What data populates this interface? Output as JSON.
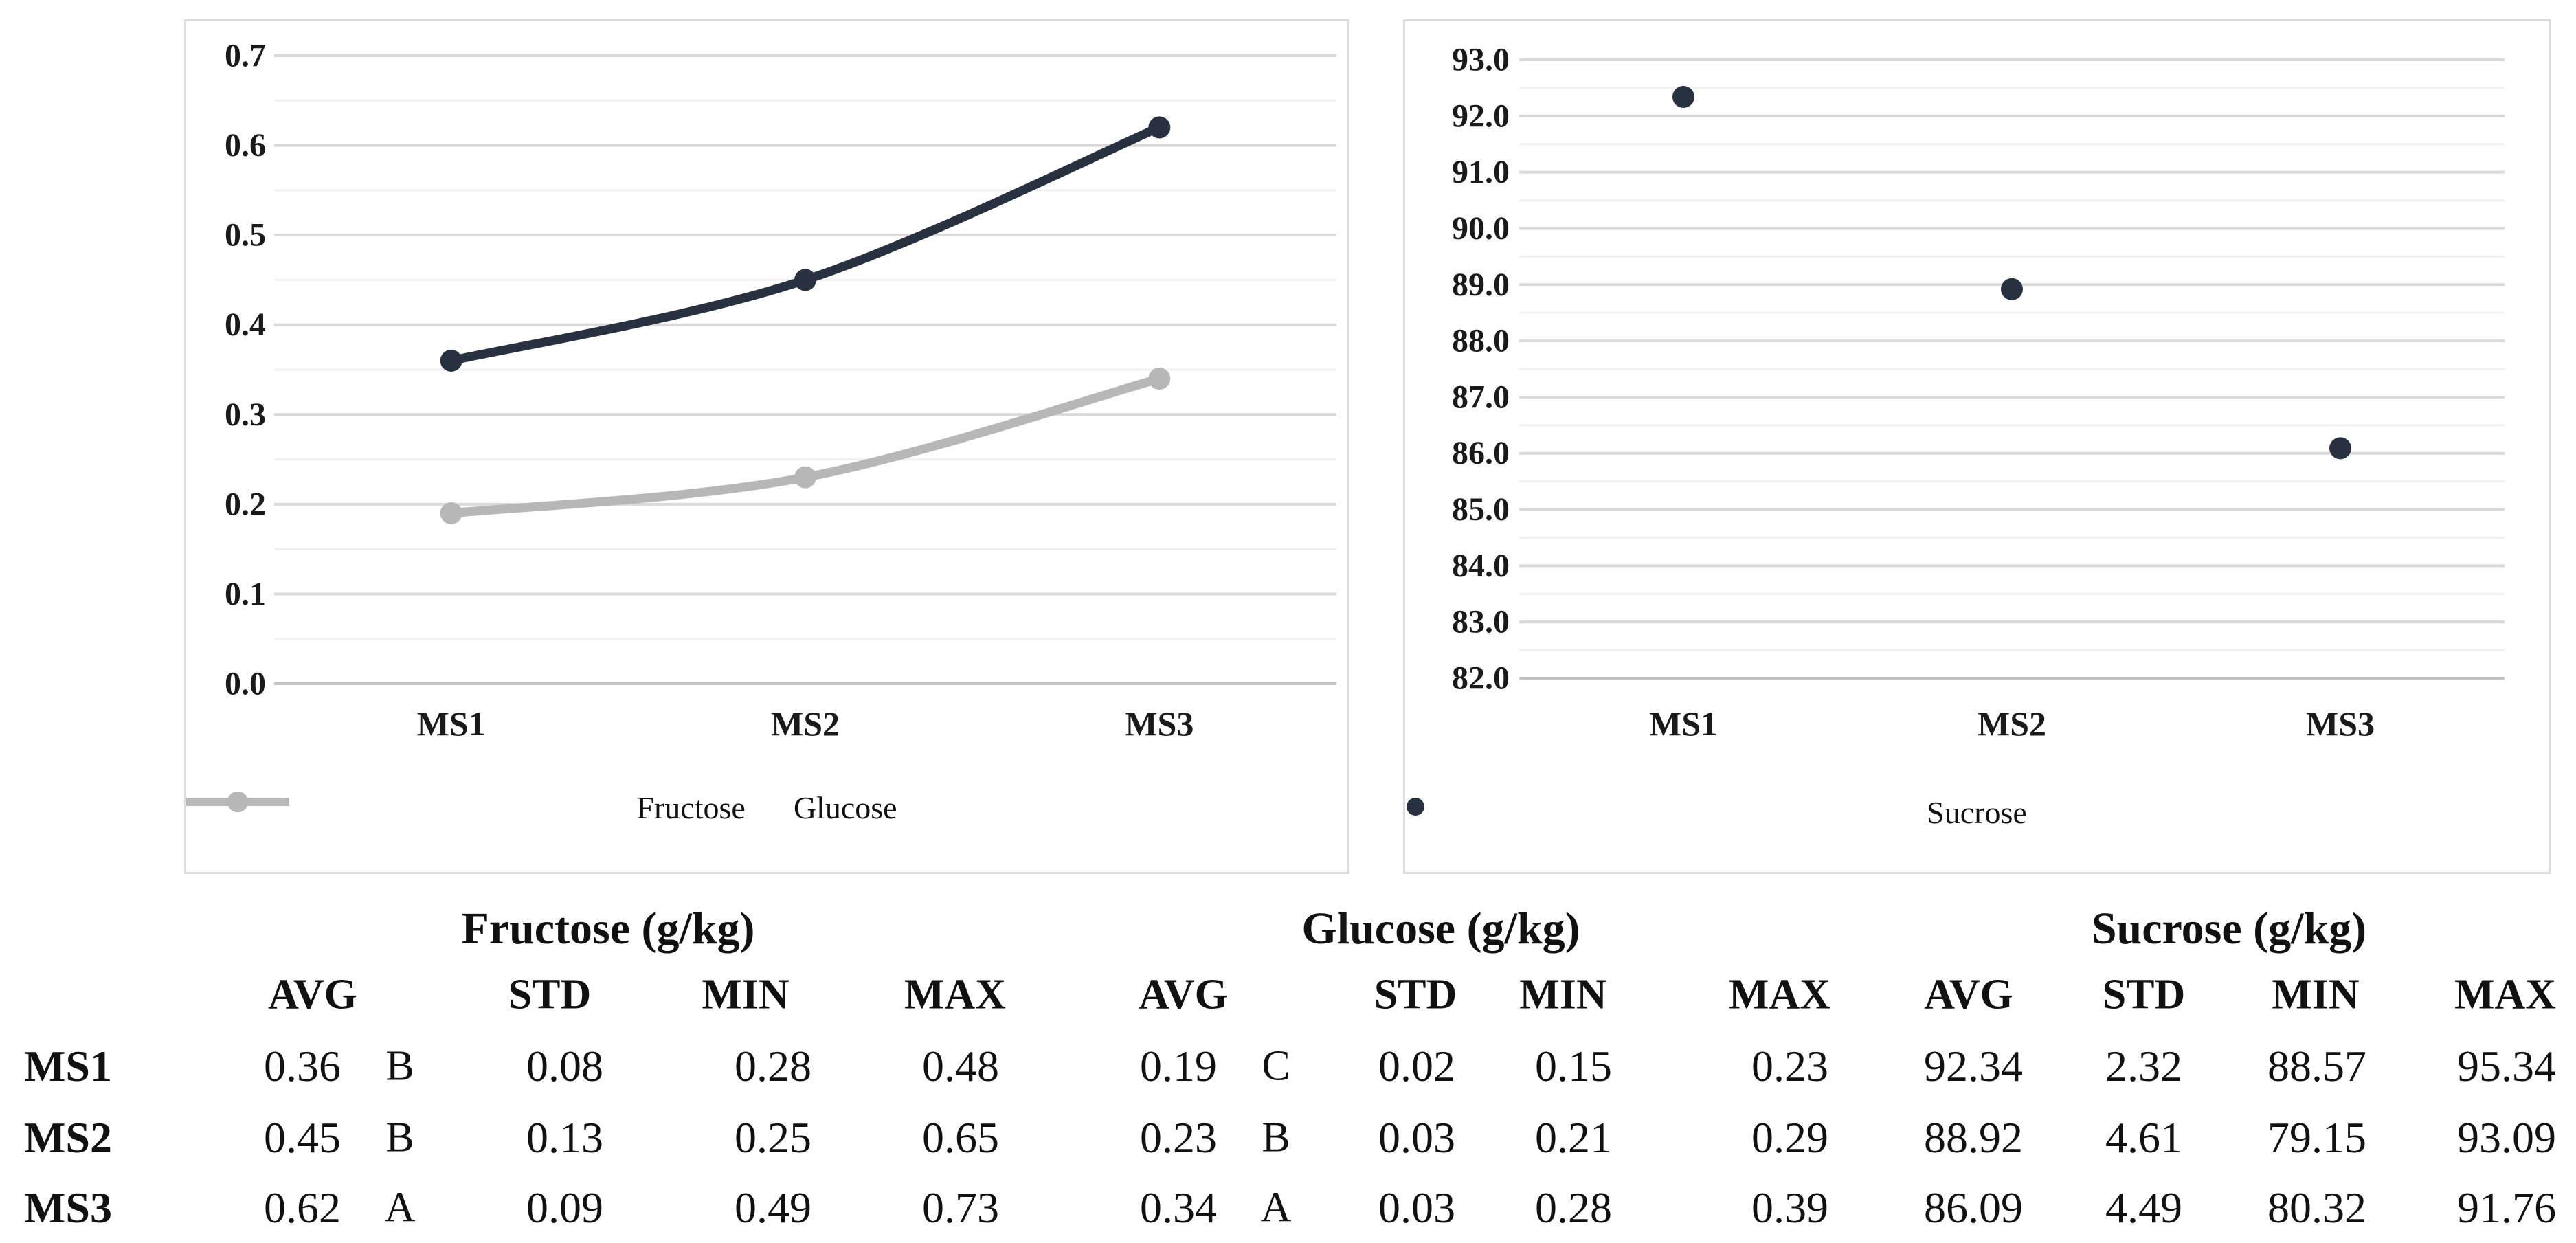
{
  "figure": {
    "background": "#ffffff",
    "panel_border_color": "#dcdcdc"
  },
  "colors": {
    "fructose_line": "#273140",
    "glucose_line": "#b7b7b7",
    "sucrose_point": "#273140",
    "gridline_major": "#d9d9d9",
    "gridline_minor": "#f1f1f1",
    "axis_line": "#c3c3c3",
    "text": "#1a1a1a"
  },
  "chart_data": [
    {
      "type": "line",
      "title": "",
      "categories": [
        "MS1",
        "MS2",
        "MS3"
      ],
      "series": [
        {
          "name": "Fructose",
          "values": [
            0.36,
            0.45,
            0.62
          ],
          "color": "#273140"
        },
        {
          "name": "Glucose",
          "values": [
            0.19,
            0.23,
            0.34
          ],
          "color": "#b7b7b7"
        }
      ],
      "xlabel": "",
      "ylabel": "",
      "ylim": [
        0.0,
        0.7
      ],
      "ytick_step": 0.1,
      "ytick_decimals": 1,
      "grid": "on",
      "legend_position": "bottom"
    },
    {
      "type": "scatter",
      "title": "",
      "categories": [
        "MS1",
        "MS2",
        "MS3"
      ],
      "series": [
        {
          "name": "Sucrose",
          "values": [
            92.34,
            88.92,
            86.09
          ],
          "color": "#273140"
        }
      ],
      "xlabel": "",
      "ylabel": "",
      "ylim": [
        82.0,
        93.0
      ],
      "ytick_step": 1.0,
      "ytick_decimals": 1,
      "grid": "on",
      "legend_position": "bottom"
    }
  ],
  "table": {
    "group_headers": [
      "Fructose (g/kg)",
      "Glucose (g/kg)",
      "Sucrose (g/kg)"
    ],
    "column_headers": [
      "AVG",
      "STD",
      "MIN",
      "MAX",
      "AVG",
      "STD",
      "MIN",
      "MAX",
      "AVG",
      "STD",
      "MIN",
      "MAX"
    ],
    "rows": [
      {
        "label": "MS1",
        "cells": [
          {
            "v": "0.36",
            "note": "B"
          },
          {
            "v": "0.08"
          },
          {
            "v": "0.28"
          },
          {
            "v": "0.48"
          },
          {
            "v": "0.19",
            "note": "C"
          },
          {
            "v": "0.02"
          },
          {
            "v": "0.15"
          },
          {
            "v": "0.23"
          },
          {
            "v": "92.34"
          },
          {
            "v": "2.32"
          },
          {
            "v": "88.57"
          },
          {
            "v": "95.34"
          }
        ]
      },
      {
        "label": "MS2",
        "cells": [
          {
            "v": "0.45",
            "note": "B"
          },
          {
            "v": "0.13"
          },
          {
            "v": "0.25"
          },
          {
            "v": "0.65"
          },
          {
            "v": "0.23",
            "note": "B"
          },
          {
            "v": "0.03"
          },
          {
            "v": "0.21"
          },
          {
            "v": "0.29"
          },
          {
            "v": "88.92"
          },
          {
            "v": "4.61"
          },
          {
            "v": "79.15"
          },
          {
            "v": "93.09"
          }
        ]
      },
      {
        "label": "MS3",
        "cells": [
          {
            "v": "0.62",
            "note": "A"
          },
          {
            "v": "0.09"
          },
          {
            "v": "0.49"
          },
          {
            "v": "0.73"
          },
          {
            "v": "0.34",
            "note": "A"
          },
          {
            "v": "0.03"
          },
          {
            "v": "0.28"
          },
          {
            "v": "0.39"
          },
          {
            "v": "86.09"
          },
          {
            "v": "4.49"
          },
          {
            "v": "80.32"
          },
          {
            "v": "91.76"
          }
        ]
      }
    ]
  }
}
